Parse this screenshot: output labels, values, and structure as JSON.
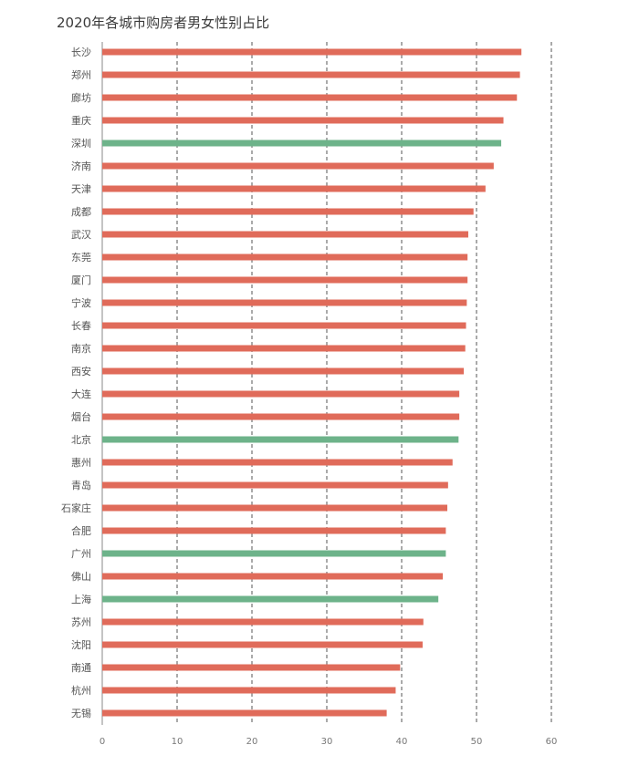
{
  "chart_data": {
    "type": "bar",
    "orientation": "horizontal",
    "title": "2020年各城市购房者男女性别占比",
    "xlabel": "",
    "ylabel": "",
    "xlim": [
      0,
      60
    ],
    "xticks": [
      0,
      10,
      20,
      30,
      40,
      50,
      60
    ],
    "grid": "vertical dashed",
    "colors": {
      "default": "#e06b5a",
      "highlight": "#6db38a",
      "grid": "#555555",
      "axis": "#888888"
    },
    "categories": [
      "长沙",
      "郑州",
      "廊坊",
      "重庆",
      "深圳",
      "济南",
      "天津",
      "成都",
      "武汉",
      "东莞",
      "厦门",
      "宁波",
      "长春",
      "南京",
      "西安",
      "大连",
      "烟台",
      "北京",
      "惠州",
      "青岛",
      "石家庄",
      "合肥",
      "广州",
      "佛山",
      "上海",
      "苏州",
      "沈阳",
      "南通",
      "杭州",
      "无锡"
    ],
    "values": [
      56.0,
      55.8,
      55.4,
      53.6,
      53.3,
      52.3,
      51.2,
      49.6,
      48.9,
      48.8,
      48.8,
      48.7,
      48.6,
      48.5,
      48.3,
      47.7,
      47.7,
      47.6,
      46.8,
      46.2,
      46.1,
      45.9,
      45.9,
      45.5,
      44.9,
      42.9,
      42.8,
      39.8,
      39.2,
      38.0
    ],
    "highlighted": [
      "深圳",
      "北京",
      "广州",
      "上海"
    ]
  }
}
